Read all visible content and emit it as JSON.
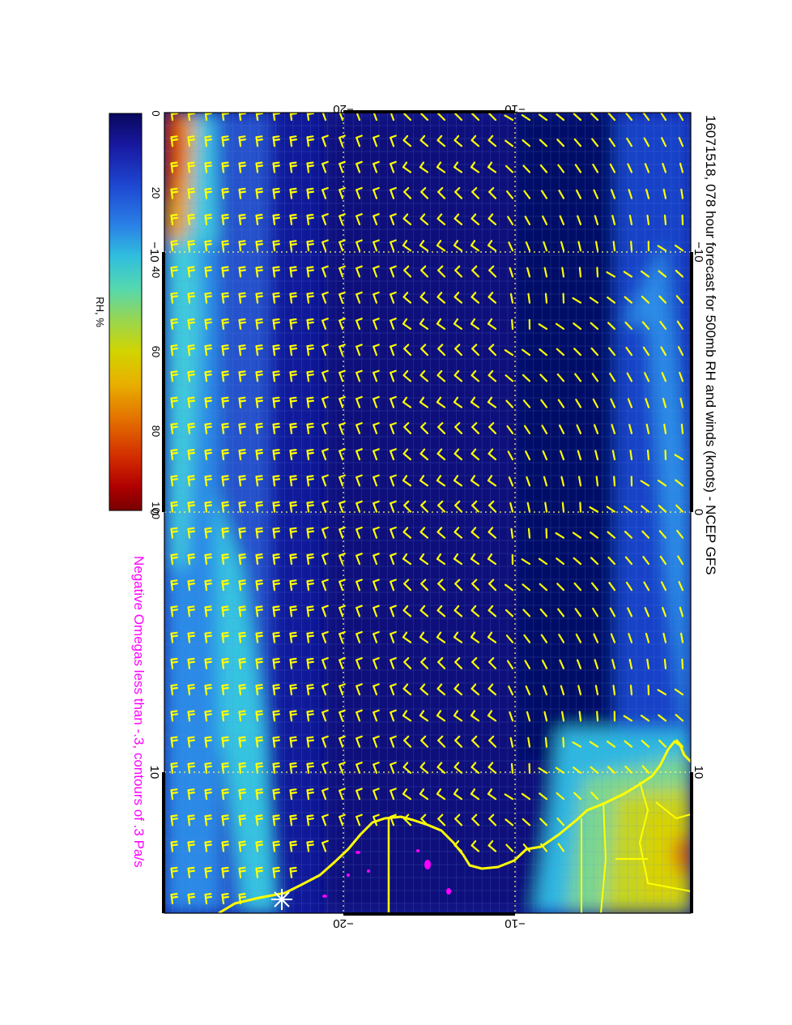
{
  "figure": {
    "title": "16071518, 078 hour forecast for 500mb RH and winds (knots) - NCEP GFS",
    "footnote": "Negative Omegas less than -.3, contours of .3 Pa/s"
  },
  "colorbar": {
    "label": "RH, %",
    "ticks": [
      "0",
      "20",
      "40",
      "60",
      "80",
      "100"
    ],
    "colors": [
      "#08085e",
      "#1c1ca8",
      "#1f4fd6",
      "#2e8fe8",
      "#31c8d8",
      "#5ad8a8",
      "#a8d640",
      "#d8d400",
      "#e8a000",
      "#e06000",
      "#d02000",
      "#900000"
    ]
  },
  "map": {
    "top_axis_ticks": [
      "−20",
      "−10"
    ],
    "bottom_axis_ticks": [
      "−20",
      "−10"
    ],
    "left_axis_ticks": [
      "−10",
      "0",
      "10"
    ],
    "right_axis_ticks": [
      "−10",
      "0",
      "10"
    ],
    "colors": {
      "wind_barb": "#ffff00",
      "coastline": "#ffff00",
      "omega": "#ff00ff",
      "grid": "#ffff66"
    }
  }
}
